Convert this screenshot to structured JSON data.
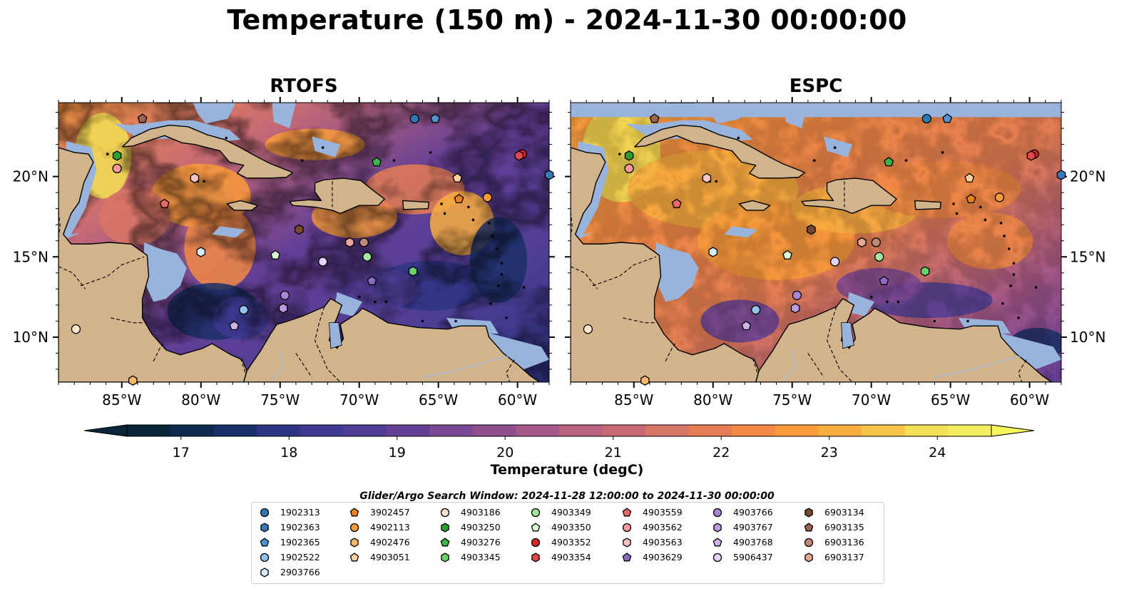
{
  "figure": {
    "title": "Temperature (150 m) - 2024-11-30 00:00:00",
    "colorbar_label": "Temperature (degC)",
    "search_window": "Glider/Argo Search Window: 2024-11-28 12:00:00 to 2024-11-30 00:00:00"
  },
  "panels": [
    {
      "name": "RTOFS"
    },
    {
      "name": "ESPC"
    }
  ],
  "map_extent": {
    "lon_min": -89,
    "lon_max": -58,
    "lat_min": 7.2,
    "lat_max": 24.6
  },
  "axes": {
    "x_ticks": [
      "85°W",
      "80°W",
      "75°W",
      "70°W",
      "65°W",
      "60°W"
    ],
    "y_ticks": [
      "20°N",
      "15°N",
      "10°N"
    ]
  },
  "colors": {
    "land": "#d2b48c",
    "shallow_water": "#98b4dc",
    "coast": "#000000"
  },
  "colorbar": {
    "min": 16.5,
    "max": 24.5,
    "step": 0.5,
    "extend": "both",
    "ticks": [
      "17",
      "18",
      "19",
      "20",
      "21",
      "22",
      "23",
      "24"
    ],
    "colors": [
      "#0b2538",
      "#0d2a4e",
      "#1b3068",
      "#2e3584",
      "#3d3a92",
      "#503e96",
      "#643f96",
      "#7b4893",
      "#8f4f8f",
      "#a5588a",
      "#b86280",
      "#c86b74",
      "#d97565",
      "#e57e54",
      "#f28a45",
      "#f99b3a",
      "#f8ae3e",
      "#f6c548",
      "#f3df55",
      "#f2ee5f"
    ]
  },
  "floats": [
    {
      "id": "1902313",
      "lon": -66.5,
      "lat": 23.6,
      "shape": "circle",
      "color": "#2c7bb6"
    },
    {
      "id": "1902363",
      "lon": -58.0,
      "lat": 20.1,
      "shape": "hexagon",
      "color": "#3a78b8"
    },
    {
      "id": "1902365",
      "lon": -65.2,
      "lat": 23.6,
      "shape": "pentagon",
      "color": "#4f94d0"
    },
    {
      "id": "1902522",
      "lon": -77.3,
      "lat": 11.7,
      "shape": "circle",
      "color": "#8ec6ec"
    },
    {
      "id": "2903766",
      "lon": -80.0,
      "lat": 15.3,
      "shape": "hexagon",
      "color": "#d4ecfa"
    },
    {
      "id": "3902457",
      "lon": -63.7,
      "lat": 18.6,
      "shape": "pentagon",
      "color": "#f07f16"
    },
    {
      "id": "4902113",
      "lon": -61.9,
      "lat": 18.7,
      "shape": "circle",
      "color": "#fb9a3c"
    },
    {
      "id": "4902476",
      "lon": -84.3,
      "lat": 7.3,
      "shape": "hexagon",
      "color": "#fdb568"
    },
    {
      "id": "4903051",
      "lon": -63.8,
      "lat": 19.9,
      "shape": "pentagon",
      "color": "#fdd2a0"
    },
    {
      "id": "4903186",
      "lon": -87.9,
      "lat": 10.5,
      "shape": "circle",
      "color": "#fde6cc"
    },
    {
      "id": "4903250",
      "lon": -85.3,
      "lat": 21.3,
      "shape": "hexagon",
      "color": "#2ca02c"
    },
    {
      "id": "4903276",
      "lon": -68.9,
      "lat": 20.9,
      "shape": "pentagon",
      "color": "#3cb44b"
    },
    {
      "id": "4903345",
      "lon": -66.6,
      "lat": 14.1,
      "shape": "hexagon",
      "color": "#6bd16b"
    },
    {
      "id": "4903349",
      "lon": -69.5,
      "lat": 15.0,
      "shape": "circle",
      "color": "#a2e6a0"
    },
    {
      "id": "4903350",
      "lon": -75.3,
      "lat": 15.1,
      "shape": "pentagon",
      "color": "#ddfbd6"
    },
    {
      "id": "4903352",
      "lon": -59.7,
      "lat": 21.4,
      "shape": "circle",
      "color": "#d62728"
    },
    {
      "id": "4903354",
      "lon": -59.9,
      "lat": 21.3,
      "shape": "hexagon",
      "color": "#e2474a"
    },
    {
      "id": "4903559",
      "lon": -82.3,
      "lat": 18.3,
      "shape": "pentagon",
      "color": "#ea6a6a"
    },
    {
      "id": "4903562",
      "lon": -85.3,
      "lat": 20.5,
      "shape": "circle",
      "color": "#f39a9a"
    },
    {
      "id": "4903563",
      "lon": -80.4,
      "lat": 19.9,
      "shape": "hexagon",
      "color": "#f8c4c4"
    },
    {
      "id": "4903629",
      "lon": -69.2,
      "lat": 13.5,
      "shape": "pentagon",
      "color": "#8e6cc4"
    },
    {
      "id": "4903766",
      "lon": -74.7,
      "lat": 12.6,
      "shape": "circle",
      "color": "#a884d6"
    },
    {
      "id": "4903767",
      "lon": -74.8,
      "lat": 11.8,
      "shape": "hexagon",
      "color": "#bc9be0"
    },
    {
      "id": "4903768",
      "lon": -77.9,
      "lat": 10.7,
      "shape": "pentagon",
      "color": "#cfb4ea"
    },
    {
      "id": "5906437",
      "lon": -72.3,
      "lat": 14.7,
      "shape": "circle",
      "color": "#e6d4f8"
    },
    {
      "id": "6903134",
      "lon": -73.8,
      "lat": 16.7,
      "shape": "hexagon",
      "color": "#7a4a2e"
    },
    {
      "id": "6903135",
      "lon": -83.7,
      "lat": 23.6,
      "shape": "pentagon",
      "color": "#9b6450"
    },
    {
      "id": "6903136",
      "lon": -69.7,
      "lat": 15.9,
      "shape": "circle",
      "color": "#c08a7a"
    },
    {
      "id": "6903137",
      "lon": -70.6,
      "lat": 15.9,
      "shape": "hexagon",
      "color": "#e8a898"
    }
  ]
}
